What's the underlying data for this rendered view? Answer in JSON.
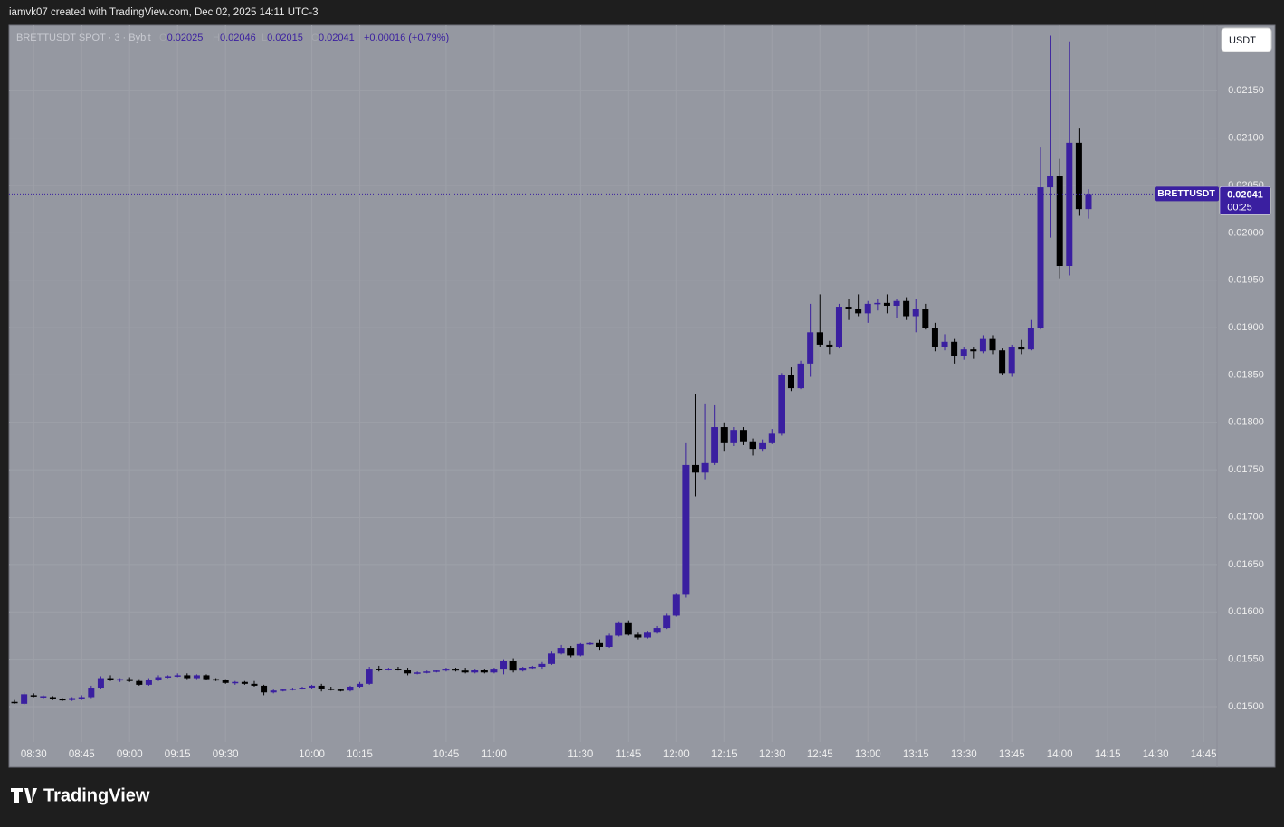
{
  "header": {
    "caption": "iamvk07 created with TradingView.com, Dec 02, 2025 14:11 UTC-3"
  },
  "footer": {
    "brand": "TradingView"
  },
  "chart_data": {
    "type": "candlestick",
    "symbol": "BRETTUSDT SPOT · 3 · Bybit",
    "legend": {
      "o": "O",
      "open": 0.02025,
      "h": "H",
      "high": 0.02046,
      "l": "L",
      "low": 0.02015,
      "c": "C",
      "close": 0.02041,
      "change": "+0.00016 (+0.79%)"
    },
    "currency": "USDT",
    "last_price": 0.02041,
    "last_price_ticker": "BRETTUSDT",
    "countdown": "00:25",
    "up_color": "#3a1fa0",
    "down_color": "#000000",
    "open": [
      0.01505,
      0.01503,
      0.01512,
      0.0151,
      0.0151,
      0.01508,
      0.01507,
      0.01509,
      0.0151,
      0.0152,
      0.0153,
      0.01528,
      0.01529,
      0.01527,
      0.01523,
      0.01528,
      0.01531,
      0.01532,
      0.01533,
      0.0153,
      0.01533,
      0.01529,
      0.01528,
      0.01525,
      0.01526,
      0.01524,
      0.01522,
      0.01515,
      0.01517,
      0.01518,
      0.01519,
      0.0152,
      0.01522,
      0.01519,
      0.01518,
      0.01517,
      0.01521,
      0.01524,
      0.0154,
      0.01539,
      0.0154,
      0.01539,
      0.01535,
      0.01536,
      0.01537,
      0.01538,
      0.0154,
      0.01538,
      0.01536,
      0.01539,
      0.01536,
      0.0154,
      0.01548,
      0.01538,
      0.01541,
      0.01542,
      0.01545,
      0.01556,
      0.01562,
      0.01554,
      0.01566,
      0.01567,
      0.01563,
      0.01575,
      0.01589,
      0.01576,
      0.01573,
      0.01578,
      0.01583,
      0.01596,
      0.01618,
      0.01755,
      0.01747,
      0.01757,
      0.01795,
      0.01778,
      0.01792,
      0.0178,
      0.01772,
      0.01778,
      0.01788,
      0.0185,
      0.01836,
      0.01862,
      0.01895,
      0.01882,
      0.0188,
      0.01922,
      0.0192,
      0.01915,
      0.01925,
      0.01926,
      0.01923,
      0.01928,
      0.01912,
      0.0192,
      0.019,
      0.0188,
      0.01885,
      0.0187,
      0.01877,
      0.01875,
      0.01888,
      0.01876,
      0.01852,
      0.0188,
      0.01877,
      0.019,
      0.02048,
      0.0206,
      0.01965,
      0.02095,
      0.02025
    ],
    "high": [
      0.01507,
      0.01515,
      0.01514,
      0.01512,
      0.01511,
      0.01509,
      0.0151,
      0.01512,
      0.01522,
      0.01532,
      0.01533,
      0.0153,
      0.01531,
      0.01529,
      0.0153,
      0.01533,
      0.01533,
      0.01535,
      0.01535,
      0.01534,
      0.01534,
      0.0153,
      0.01529,
      0.01527,
      0.01527,
      0.01527,
      0.01523,
      0.01518,
      0.01519,
      0.0152,
      0.01521,
      0.01523,
      0.01524,
      0.01521,
      0.01519,
      0.01522,
      0.01526,
      0.01542,
      0.01543,
      0.01541,
      0.01542,
      0.01541,
      0.01537,
      0.01538,
      0.01539,
      0.01541,
      0.01541,
      0.01541,
      0.0154,
      0.0154,
      0.01541,
      0.0155,
      0.01551,
      0.01542,
      0.01543,
      0.01547,
      0.01558,
      0.01565,
      0.01564,
      0.01567,
      0.01568,
      0.01571,
      0.01577,
      0.0159,
      0.01591,
      0.01578,
      0.0158,
      0.01585,
      0.01598,
      0.0162,
      0.01778,
      0.0183,
      0.0182,
      0.01818,
      0.018,
      0.01795,
      0.01795,
      0.01783,
      0.01782,
      0.01793,
      0.01852,
      0.01858,
      0.01865,
      0.01925,
      0.01935,
      0.01886,
      0.01925,
      0.0193,
      0.01935,
      0.01928,
      0.0193,
      0.01935,
      0.0193,
      0.01932,
      0.0193,
      0.01925,
      0.01905,
      0.01893,
      0.01888,
      0.0188,
      0.01879,
      0.01892,
      0.01892,
      0.01878,
      0.01882,
      0.01887,
      0.01908,
      0.0209,
      0.02208,
      0.02078,
      0.02202,
      0.0211,
      0.02046
    ],
    "low": [
      0.01503,
      0.01502,
      0.0151,
      0.01508,
      0.01507,
      0.01506,
      0.01506,
      0.01507,
      0.01509,
      0.01519,
      0.01527,
      0.01526,
      0.01526,
      0.01522,
      0.01522,
      0.01527,
      0.0153,
      0.01531,
      0.01529,
      0.01529,
      0.01528,
      0.01527,
      0.01524,
      0.01523,
      0.01523,
      0.01521,
      0.01512,
      0.01514,
      0.01516,
      0.01517,
      0.01518,
      0.01519,
      0.01516,
      0.01517,
      0.01516,
      0.01516,
      0.0152,
      0.01523,
      0.01537,
      0.01538,
      0.01538,
      0.01533,
      0.01534,
      0.01535,
      0.01536,
      0.01537,
      0.01537,
      0.01535,
      0.01535,
      0.01535,
      0.01535,
      0.01534,
      0.01536,
      0.01537,
      0.0154,
      0.0154,
      0.01544,
      0.01555,
      0.01552,
      0.01553,
      0.01565,
      0.0156,
      0.01562,
      0.01574,
      0.01575,
      0.01571,
      0.01572,
      0.01577,
      0.01582,
      0.01595,
      0.01615,
      0.01722,
      0.0174,
      0.01755,
      0.0177,
      0.01775,
      0.01776,
      0.01765,
      0.0177,
      0.01777,
      0.01786,
      0.01833,
      0.01835,
      0.01848,
      0.0188,
      0.01872,
      0.01878,
      0.01908,
      0.01912,
      0.01905,
      0.01918,
      0.01915,
      0.0191,
      0.01908,
      0.01895,
      0.01898,
      0.01875,
      0.01876,
      0.01862,
      0.01866,
      0.01867,
      0.01873,
      0.01872,
      0.0185,
      0.01848,
      0.01872,
      0.01876,
      0.01898,
      0.01995,
      0.01952,
      0.01955,
      0.02018,
      0.02015
    ],
    "close": [
      0.01504,
      0.01513,
      0.01511,
      0.01511,
      0.01508,
      0.01507,
      0.01509,
      0.0151,
      0.0152,
      0.0153,
      0.01528,
      0.01529,
      0.01527,
      0.01523,
      0.01528,
      0.01531,
      0.01532,
      0.01533,
      0.0153,
      0.01533,
      0.01529,
      0.01528,
      0.01525,
      0.01526,
      0.01524,
      0.01522,
      0.01515,
      0.01517,
      0.01518,
      0.01519,
      0.0152,
      0.01522,
      0.01519,
      0.01518,
      0.01517,
      0.01521,
      0.01524,
      0.0154,
      0.01539,
      0.0154,
      0.01539,
      0.01535,
      0.01536,
      0.01537,
      0.01538,
      0.0154,
      0.01538,
      0.01536,
      0.01539,
      0.01536,
      0.0154,
      0.01548,
      0.01538,
      0.01541,
      0.01542,
      0.01545,
      0.01556,
      0.01562,
      0.01554,
      0.01566,
      0.01567,
      0.01563,
      0.01575,
      0.01589,
      0.01576,
      0.01573,
      0.01578,
      0.01583,
      0.01596,
      0.01618,
      0.01755,
      0.01747,
      0.01757,
      0.01795,
      0.01778,
      0.01792,
      0.0178,
      0.01772,
      0.01778,
      0.01788,
      0.0185,
      0.01836,
      0.01862,
      0.01895,
      0.01882,
      0.0188,
      0.01922,
      0.0192,
      0.01915,
      0.01925,
      0.01926,
      0.01923,
      0.01928,
      0.01912,
      0.0192,
      0.019,
      0.0188,
      0.01885,
      0.0187,
      0.01877,
      0.01875,
      0.01888,
      0.01876,
      0.01852,
      0.0188,
      0.01877,
      0.019,
      0.02048,
      0.0206,
      0.01965,
      0.02095,
      0.02025,
      0.02041
    ],
    "ylim": [
      0.01436,
      0.02219
    ],
    "yticks": [
      {
        "value": 0.015,
        "label": "0.01500"
      },
      {
        "value": 0.0155,
        "label": "0.01550"
      },
      {
        "value": 0.016,
        "label": "0.01600"
      },
      {
        "value": 0.0165,
        "label": "0.01650"
      },
      {
        "value": 0.017,
        "label": "0.01700"
      },
      {
        "value": 0.0175,
        "label": "0.01750"
      },
      {
        "value": 0.018,
        "label": "0.01800"
      },
      {
        "value": 0.0185,
        "label": "0.01850"
      },
      {
        "value": 0.019,
        "label": "0.01900"
      },
      {
        "value": 0.0195,
        "label": "0.01950"
      },
      {
        "value": 0.02,
        "label": "0.02000"
      },
      {
        "value": 0.0205,
        "label": "0.02050"
      },
      {
        "value": 0.021,
        "label": "0.02100"
      },
      {
        "value": 0.0215,
        "label": "0.02150"
      }
    ],
    "xlim": [
      -0.57,
      125.4
    ],
    "xticks": [
      {
        "value": 2,
        "label": "08:30"
      },
      {
        "value": 7,
        "label": "08:45"
      },
      {
        "value": 12,
        "label": "09:00"
      },
      {
        "value": 17,
        "label": "09:15"
      },
      {
        "value": 22,
        "label": "09:30"
      },
      {
        "value": 31,
        "label": "10:00"
      },
      {
        "value": 36,
        "label": "10:15"
      },
      {
        "value": 45,
        "label": "10:45"
      },
      {
        "value": 50,
        "label": "11:00"
      },
      {
        "value": 59,
        "label": "11:30"
      },
      {
        "value": 64,
        "label": "11:45"
      },
      {
        "value": 69,
        "label": "12:00"
      },
      {
        "value": 74,
        "label": "12:15"
      },
      {
        "value": 79,
        "label": "12:30"
      },
      {
        "value": 84,
        "label": "12:45"
      },
      {
        "value": 89,
        "label": "13:00"
      },
      {
        "value": 94,
        "label": "13:15"
      },
      {
        "value": 99,
        "label": "13:30"
      },
      {
        "value": 104,
        "label": "13:45"
      },
      {
        "value": 109,
        "label": "14:00"
      },
      {
        "value": 114,
        "label": "14:15"
      },
      {
        "value": 119,
        "label": "14:30"
      },
      {
        "value": 124,
        "label": "14:45"
      }
    ],
    "grid": true
  }
}
